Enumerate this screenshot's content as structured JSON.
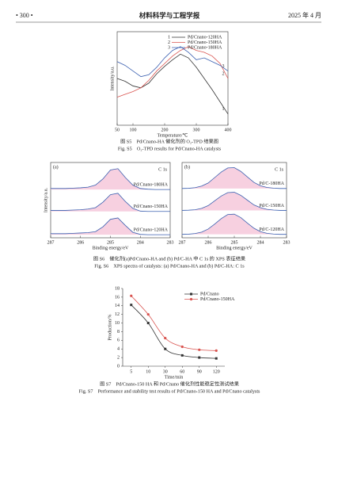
{
  "header": {
    "page": "• 300 •",
    "journal": "材料科学与工程学报",
    "date": "2025 年 4 月"
  },
  "figures": [
    {
      "caption_cn": "图 S5　Pd/Cnano-HA 催化剂的 O₂-TPD 结果图",
      "caption_en": "Fig. S5　O₂-TPD results for Pd/Cnano-HA catalysts"
    },
    {
      "caption_cn": "图 S6　催化剂(a)Pd/Cnano-HA and (b) Pd/C-HA 中 C 1s 的 XPS 表征结果",
      "caption_en": "Fig. S6　XPS spectra of catalysts: (a) Pd/Cnano-HA and (b) Pd/C-HA: C 1s"
    },
    {
      "caption_cn": "图 S7　Pd/Cnano-150 HA 和 Pd/Cnano 催化剂性能稳定性测试结果",
      "caption_en": "Fig. S7　Performance and stability test results of Pd/Cnano-150 HA and Pd/Cnano catalysts"
    }
  ],
  "chart_data": [
    {
      "type": "line",
      "xlabel": "Temperature/℃",
      "ylabel": "Intensity/a.u.",
      "x": [
        50,
        75,
        100,
        125,
        150,
        175,
        200,
        225,
        250,
        275,
        300,
        325,
        350,
        375,
        400
      ],
      "xlim": [
        50,
        400
      ],
      "xticks": [
        50,
        100,
        200,
        300,
        400
      ],
      "ylim": [
        0,
        100
      ],
      "frame": true,
      "legend": "top-right",
      "series": [
        {
          "name": "Pd/Cnano-120HA",
          "marker_label": "1",
          "color": "#333333",
          "values": [
            50,
            47,
            42,
            40,
            45,
            55,
            63,
            70,
            76,
            72,
            62,
            50,
            38,
            25,
            12
          ]
        },
        {
          "name": "Pd/Cnano-150HA",
          "marker_label": "2",
          "color": "#d9534f",
          "values": [
            30,
            33,
            36,
            40,
            48,
            58,
            66,
            74,
            80,
            84,
            80,
            78,
            74,
            66,
            50
          ]
        },
        {
          "name": "Pd/Cnano-180HA",
          "marker_label": "3",
          "color": "#3a5fb0",
          "values": [
            68,
            64,
            58,
            52,
            54,
            62,
            72,
            80,
            84,
            78,
            70,
            72,
            68,
            64,
            58
          ]
        }
      ]
    },
    {
      "type": "line",
      "panel_label": "(a)",
      "annotation": "C 1s",
      "xlabel": "Binding energy/eV",
      "ylabel": "Intensity/a.u.",
      "x": [
        287,
        286.75,
        286.5,
        286.25,
        286,
        285.75,
        285.5,
        285.25,
        285,
        284.75,
        284.5,
        284.25,
        284,
        283.75,
        283.5,
        283.25,
        283
      ],
      "xlim": [
        287,
        283
      ],
      "xticks": [
        287,
        286,
        285,
        284,
        283
      ],
      "ylim": [
        0,
        110
      ],
      "frame": true,
      "fill": "#f5c4d8",
      "series": [
        {
          "name": "Pd/Cnano-180HA",
          "color": "#3a5fb0",
          "values": [
            72,
            72,
            72,
            72.5,
            73,
            74,
            77,
            86,
            99,
            101,
            88,
            77,
            72,
            71,
            70.5,
            70.5,
            70.5
          ]
        },
        {
          "name": "Pd/Cnano-150HA",
          "color": "#3a5fb0",
          "values": [
            40,
            40,
            40,
            40.5,
            41,
            42,
            44,
            52,
            63,
            65,
            53,
            43,
            39,
            38.5,
            38.5,
            38.5,
            38.5
          ]
        },
        {
          "name": "Pd/Cnano-120HA",
          "color": "#3a5fb0",
          "values": [
            6,
            6,
            6,
            6.5,
            7,
            7.5,
            9,
            16,
            27,
            29,
            18,
            8,
            5,
            4.5,
            4.5,
            4.5,
            4.5
          ]
        }
      ]
    },
    {
      "type": "line",
      "panel_label": "(b)",
      "annotation": "C 1s",
      "xlabel": "Binding energy/eV",
      "x": [
        287,
        286.75,
        286.5,
        286.25,
        286,
        285.75,
        285.5,
        285.25,
        285,
        284.75,
        284.5,
        284.25,
        284,
        283.75,
        283.5,
        283.25,
        283
      ],
      "xlim": [
        287,
        283
      ],
      "xticks": [
        287,
        286,
        285,
        284,
        283
      ],
      "ylim": [
        0,
        110
      ],
      "frame": true,
      "fill": "#f5c4d8",
      "series": [
        {
          "name": "Pd/C-180HA",
          "color": "#3a5fb0",
          "values": [
            72,
            72.3,
            73.2,
            75.5,
            80,
            88,
            96,
            102,
            102.5,
            97,
            89,
            81,
            76,
            73.5,
            72.5,
            72,
            72
          ]
        },
        {
          "name": "Pd/C-150HA",
          "color": "#3a5fb0",
          "values": [
            40,
            40.3,
            41,
            43,
            47,
            54,
            61,
            66,
            66.5,
            62,
            55,
            48,
            44,
            41.5,
            40.5,
            40,
            40
          ]
        },
        {
          "name": "Pd/C-120HA",
          "color": "#3a5fb0",
          "values": [
            5,
            5.3,
            6.2,
            8.3,
            12.8,
            20,
            28,
            34,
            34.5,
            29.5,
            21.5,
            14,
            9,
            6.5,
            5.5,
            5,
            5
          ]
        }
      ]
    },
    {
      "type": "line",
      "xlabel": "Time/min",
      "ylabel": "Production/%",
      "smooth": true,
      "markers": true,
      "legend": "top-right",
      "categories": [
        "5",
        "10",
        "30",
        "60",
        "90",
        "120"
      ],
      "ylim": [
        0,
        18
      ],
      "yticks": [
        0,
        2,
        4,
        6,
        8,
        10,
        12,
        14,
        16,
        18
      ],
      "series": [
        {
          "name": "Pd/Cnano",
          "color": "#333333",
          "marker": "square",
          "values": [
            14.2,
            10,
            4,
            2.5,
            2,
            1.8
          ]
        },
        {
          "name": "Pd/Cnano-150HA",
          "color": "#d9534f",
          "marker": "circle",
          "values": [
            16.3,
            12,
            6.5,
            4.5,
            3.8,
            3.6
          ]
        }
      ]
    }
  ]
}
